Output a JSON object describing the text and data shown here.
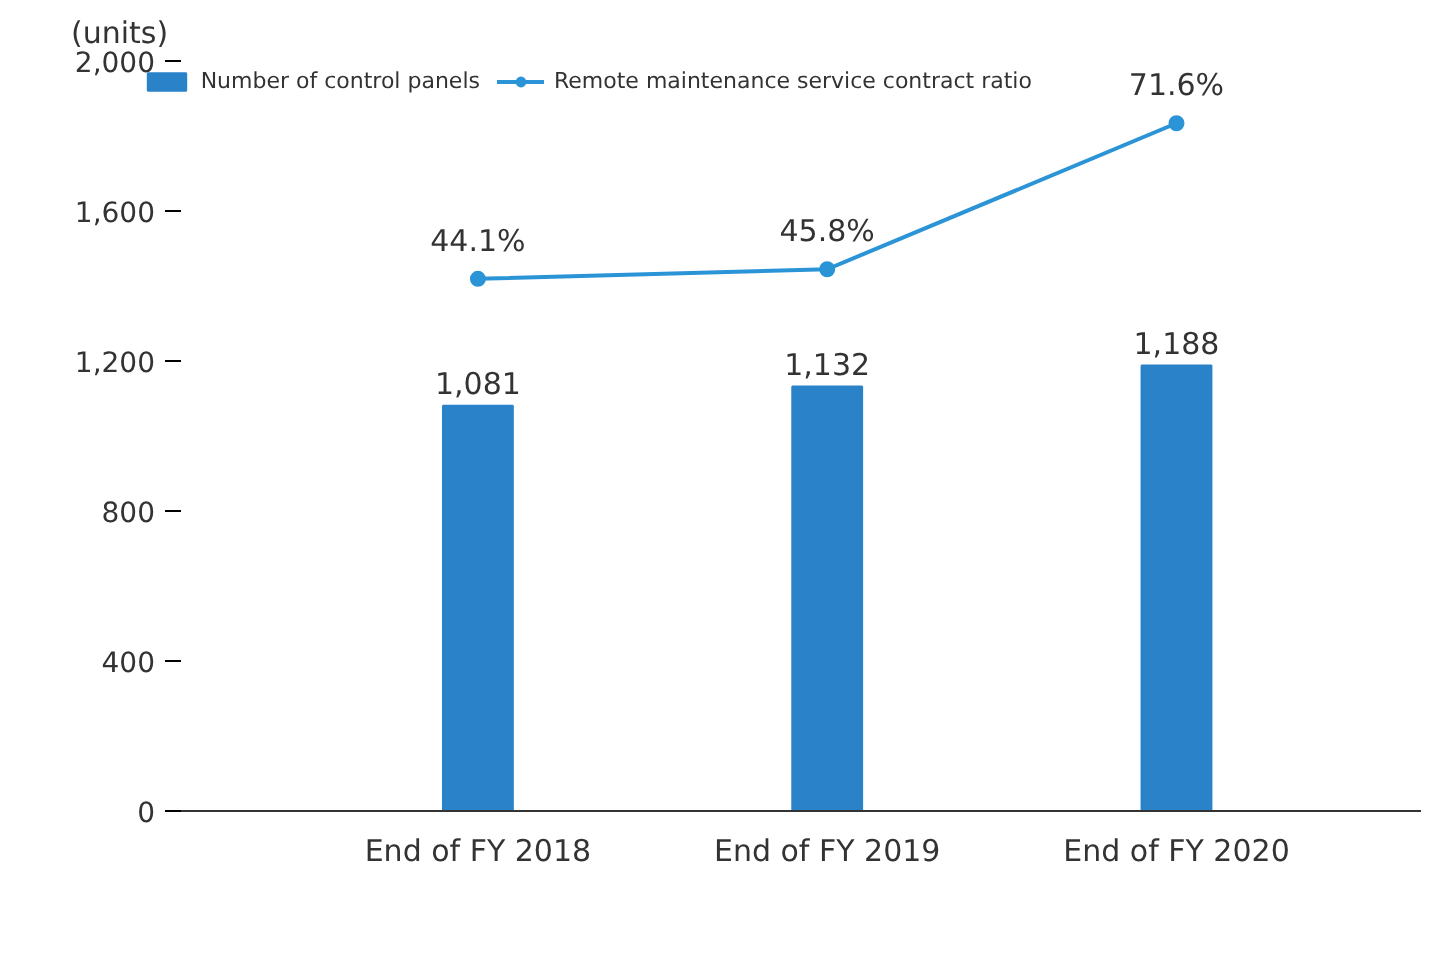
{
  "chart_data": {
    "type": "bar",
    "ylabel": "(units)",
    "categories": [
      "End of FY 2018",
      "End of FY 2019",
      "End of FY 2020"
    ],
    "series": [
      {
        "name": "Number of control panels",
        "color": "#2a82c9",
        "values": [
          1081,
          1132,
          1188
        ],
        "value_labels": [
          "1,081",
          "1,132",
          "1,188"
        ]
      },
      {
        "name": "Remote maintenance service contract ratio",
        "type": "line",
        "axis": "y2",
        "color": "#2a94d6",
        "values": [
          44.1,
          45.8,
          71.6
        ],
        "value_labels": [
          "44.1%",
          "45.8%",
          "71.6%"
        ]
      }
    ],
    "ylim": [
      0,
      2000
    ],
    "yticks": [
      0,
      {
        "value": 400,
        "label": "400"
      },
      {
        "value": 800,
        "label": "800"
      },
      {
        "value": 1200,
        "label": "1,200"
      },
      {
        "value": 1600,
        "label": "1,600"
      },
      {
        "value": 2000,
        "label": "2,000"
      }
    ],
    "data_labels": true,
    "marker": "circle",
    "legend": "top",
    "grid": false
  }
}
